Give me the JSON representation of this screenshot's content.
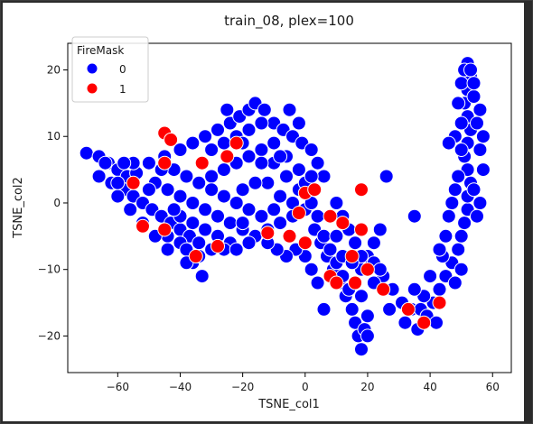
{
  "chart_data": {
    "type": "scatter",
    "title": "train_08, plex=100",
    "xlabel": "TSNE_col1",
    "ylabel": "TSNE_col2",
    "xlim": [
      -76,
      66
    ],
    "ylim": [
      -25.5,
      24
    ],
    "xticks": [
      -60,
      -40,
      -20,
      0,
      20,
      40,
      60
    ],
    "xtick_labels": [
      "−60",
      "−40",
      "−20",
      "0",
      "20",
      "40",
      "60"
    ],
    "yticks": [
      -20,
      -10,
      0,
      10,
      20
    ],
    "ytick_labels": [
      "−20",
      "−10",
      "0",
      "10",
      "20"
    ],
    "grid": false,
    "legend": {
      "title": "FireMask",
      "placement": "top-left",
      "entries": [
        {
          "label": "0",
          "color": "#0000ff"
        },
        {
          "label": "1",
          "color": "#ff0000"
        }
      ]
    },
    "series": [
      {
        "name": "0",
        "color": "#0000ff",
        "points": [
          [
            -70,
            7.5
          ],
          [
            -66,
            7
          ],
          [
            -63,
            6
          ],
          [
            -60,
            5
          ],
          [
            -57,
            4
          ],
          [
            -54,
            4.5
          ],
          [
            -66,
            4
          ],
          [
            -62,
            3
          ],
          [
            -58,
            2
          ],
          [
            -55,
            1
          ],
          [
            -52,
            0
          ],
          [
            -49,
            -1
          ],
          [
            -46,
            -2
          ],
          [
            -43,
            -3
          ],
          [
            -40,
            -4
          ],
          [
            -37,
            -5
          ],
          [
            -34,
            -6
          ],
          [
            -36,
            -9
          ],
          [
            -33,
            -11
          ],
          [
            -30,
            -7
          ],
          [
            -55,
            6
          ],
          [
            -50,
            6
          ],
          [
            -45,
            7
          ],
          [
            -40,
            8
          ],
          [
            -36,
            9
          ],
          [
            -32,
            10
          ],
          [
            -28,
            11
          ],
          [
            -24,
            12
          ],
          [
            -21,
            13
          ],
          [
            -18,
            14
          ],
          [
            -16,
            15
          ],
          [
            -13,
            14
          ],
          [
            -10,
            12
          ],
          [
            -7,
            11
          ],
          [
            -4,
            10
          ],
          [
            -1,
            9
          ],
          [
            2,
            8
          ],
          [
            4,
            6
          ],
          [
            6,
            4
          ],
          [
            -5,
            14
          ],
          [
            -2,
            12
          ],
          [
            -48,
            3
          ],
          [
            -44,
            2
          ],
          [
            -40,
            1
          ],
          [
            -36,
            0
          ],
          [
            -32,
            -1
          ],
          [
            -28,
            -2
          ],
          [
            -24,
            -3
          ],
          [
            -20,
            -4
          ],
          [
            -16,
            -5
          ],
          [
            -12,
            -4
          ],
          [
            -8,
            -3
          ],
          [
            -4,
            -2
          ],
          [
            -44,
            -5
          ],
          [
            -40,
            -6
          ],
          [
            -38,
            -7
          ],
          [
            -30,
            4
          ],
          [
            -26,
            5
          ],
          [
            -22,
            6
          ],
          [
            -18,
            7
          ],
          [
            -14,
            8
          ],
          [
            -10,
            6
          ],
          [
            -6,
            4
          ],
          [
            -2,
            2
          ],
          [
            -30,
            8
          ],
          [
            -26,
            9
          ],
          [
            -22,
            10
          ],
          [
            -18,
            11
          ],
          [
            -14,
            12
          ],
          [
            -12,
            3
          ],
          [
            -8,
            1
          ],
          [
            -4,
            0
          ],
          [
            0,
            -1
          ],
          [
            2,
            0
          ],
          [
            4,
            -2
          ],
          [
            3,
            -4
          ],
          [
            5,
            -6
          ],
          [
            7,
            -8
          ],
          [
            9,
            -10
          ],
          [
            11,
            -12
          ],
          [
            13,
            -14
          ],
          [
            15,
            -16
          ],
          [
            16,
            -18
          ],
          [
            17,
            -20
          ],
          [
            18,
            -22
          ],
          [
            19,
            -19
          ],
          [
            20,
            -17
          ],
          [
            6,
            -5
          ],
          [
            8,
            -7
          ],
          [
            10,
            -9
          ],
          [
            12,
            -11
          ],
          [
            14,
            -13
          ],
          [
            16,
            -12
          ],
          [
            18,
            -10
          ],
          [
            20,
            -8
          ],
          [
            22,
            -6
          ],
          [
            24,
            -4
          ],
          [
            10,
            0
          ],
          [
            12,
            -2
          ],
          [
            14,
            -4
          ],
          [
            16,
            -6
          ],
          [
            18,
            -8
          ],
          [
            22,
            -9
          ],
          [
            25,
            -11
          ],
          [
            28,
            -13
          ],
          [
            31,
            -15
          ],
          [
            34,
            -16
          ],
          [
            37,
            -16
          ],
          [
            39,
            -17
          ],
          [
            41,
            -15
          ],
          [
            43,
            -13
          ],
          [
            45,
            -11
          ],
          [
            47,
            -9
          ],
          [
            49,
            -7
          ],
          [
            50,
            -5
          ],
          [
            51,
            -3
          ],
          [
            52,
            -1
          ],
          [
            52,
            1
          ],
          [
            53,
            3
          ],
          [
            52,
            5
          ],
          [
            51,
            7
          ],
          [
            52,
            9
          ],
          [
            53,
            11
          ],
          [
            52,
            13
          ],
          [
            51,
            15
          ],
          [
            52,
            17
          ],
          [
            53,
            19
          ],
          [
            52,
            21
          ],
          [
            54,
            16
          ],
          [
            55,
            12
          ],
          [
            56,
            8
          ],
          [
            57,
            5
          ],
          [
            48,
            2
          ],
          [
            47,
            0
          ],
          [
            46,
            -2
          ],
          [
            45,
            -5
          ],
          [
            44,
            -8
          ],
          [
            36,
            -19
          ],
          [
            38,
            -14
          ],
          [
            42,
            -18
          ],
          [
            32,
            -18
          ],
          [
            27,
            -16
          ],
          [
            6,
            -16
          ],
          [
            4,
            -12
          ],
          [
            2,
            -10
          ],
          [
            0,
            -8
          ],
          [
            -3,
            -7
          ],
          [
            -6,
            -8
          ],
          [
            -9,
            -7
          ],
          [
            -12,
            -6
          ],
          [
            -60,
            1
          ],
          [
            -56,
            -1
          ],
          [
            -52,
            -3
          ],
          [
            -48,
            -5
          ],
          [
            -44,
            -7
          ],
          [
            -42,
            5
          ],
          [
            -38,
            4
          ],
          [
            -34,
            3
          ],
          [
            -30,
            2
          ],
          [
            -26,
            1
          ],
          [
            -22,
            0
          ],
          [
            -18,
            -1
          ],
          [
            -14,
            -2
          ],
          [
            -10,
            -1
          ],
          [
            -16,
            3
          ],
          [
            -20,
            2
          ],
          [
            -24,
            -6
          ],
          [
            -28,
            -5
          ],
          [
            -32,
            -4
          ],
          [
            -36,
            -3
          ],
          [
            -40,
            -2
          ],
          [
            -25,
            14
          ],
          [
            -20,
            9
          ],
          [
            -10,
            9
          ],
          [
            -6,
            7
          ],
          [
            -2,
            5
          ],
          [
            -60,
            3
          ],
          [
            -64,
            6
          ],
          [
            -58,
            6
          ],
          [
            -50,
            2
          ],
          [
            -46,
            5
          ],
          [
            -42,
            -1
          ],
          [
            -38,
            -9
          ],
          [
            -34,
            -8
          ],
          [
            -26,
            -7
          ],
          [
            -22,
            -7
          ],
          [
            -18,
            -6
          ],
          [
            -14,
            6
          ],
          [
            -8,
            7
          ],
          [
            0,
            3
          ],
          [
            2,
            4
          ],
          [
            -20,
            -3
          ],
          [
            26,
            4
          ],
          [
            24,
            -10
          ],
          [
            22,
            -12
          ],
          [
            18,
            -14
          ],
          [
            20,
            -20
          ],
          [
            10,
            -5
          ],
          [
            12,
            -8
          ],
          [
            15,
            -9
          ],
          [
            35,
            -13
          ],
          [
            40,
            -11
          ],
          [
            43,
            -7
          ],
          [
            48,
            -12
          ],
          [
            50,
            -10
          ],
          [
            54,
            2
          ],
          [
            55,
            -2
          ],
          [
            56,
            0
          ],
          [
            49,
            4
          ],
          [
            50,
            8
          ],
          [
            48,
            10
          ],
          [
            50,
            12
          ],
          [
            49,
            15
          ],
          [
            50,
            18
          ],
          [
            51,
            20
          ],
          [
            53,
            20
          ],
          [
            54,
            18
          ],
          [
            56,
            14
          ],
          [
            57,
            10
          ],
          [
            46,
            9
          ],
          [
            35,
            -2
          ]
        ]
      },
      {
        "name": "1",
        "color": "#ff0000",
        "points": [
          [
            -45,
            10.5
          ],
          [
            -43,
            9.5
          ],
          [
            -45,
            6
          ],
          [
            -25,
            7
          ],
          [
            -33,
            6
          ],
          [
            -28,
            -6.5
          ],
          [
            -45,
            -4
          ],
          [
            -55,
            3
          ],
          [
            -52,
            -3.5
          ],
          [
            -35,
            -8
          ],
          [
            -12,
            -4.5
          ],
          [
            0,
            1.5
          ],
          [
            3,
            2
          ],
          [
            8,
            -2
          ],
          [
            12,
            -3
          ],
          [
            15,
            -8
          ],
          [
            16,
            -12
          ],
          [
            18,
            -4
          ],
          [
            20,
            -10
          ],
          [
            25,
            -13
          ],
          [
            8,
            -11
          ],
          [
            10,
            -12
          ],
          [
            0,
            -6
          ],
          [
            -5,
            -5
          ],
          [
            18,
            2
          ],
          [
            -22,
            9
          ],
          [
            -2,
            -1.5
          ],
          [
            38,
            -18
          ],
          [
            43,
            -15
          ],
          [
            33,
            -16
          ]
        ]
      }
    ]
  }
}
